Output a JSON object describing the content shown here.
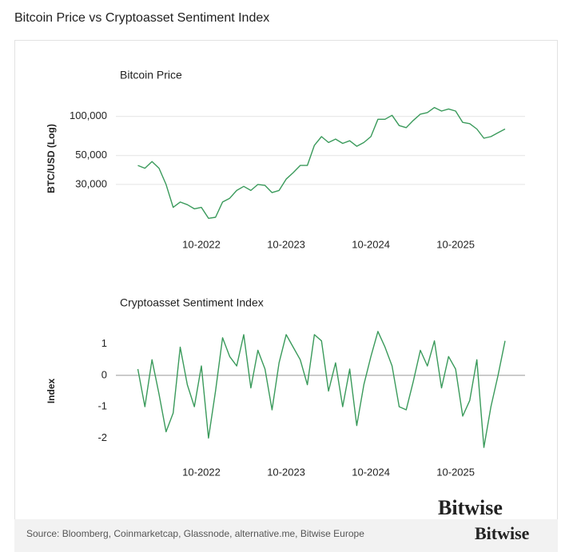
{
  "title": "Bitcoin Price vs Cryptoasset Sentiment Index",
  "chart_data": [
    {
      "type": "line",
      "title": "Bitcoin Price",
      "y_label": "BTC/USD (Log)",
      "log_scale": true,
      "grid": true,
      "color": "#3a9a5b",
      "x": [
        "01-2022",
        "02-2022",
        "03-2022",
        "04-2022",
        "05-2022",
        "06-2022",
        "07-2022",
        "08-2022",
        "09-2022",
        "10-2022",
        "11-2022",
        "12-2022",
        "01-2023",
        "02-2023",
        "03-2023",
        "04-2023",
        "05-2023",
        "06-2023",
        "07-2023",
        "08-2023",
        "09-2023",
        "10-2023",
        "11-2023",
        "12-2023",
        "01-2024",
        "02-2024",
        "03-2024",
        "04-2024",
        "05-2024",
        "06-2024",
        "07-2024",
        "08-2024",
        "09-2024",
        "10-2024",
        "11-2024",
        "12-2024",
        "01-2025",
        "02-2025",
        "03-2025",
        "04-2025",
        "05-2025",
        "06-2025",
        "07-2025",
        "08-2025",
        "09-2025",
        "10-2025",
        "11-2025",
        "12-2025",
        "01-2026",
        "02-2026",
        "03-2026",
        "04-2026",
        "05-2026"
      ],
      "values": [
        42000,
        40000,
        45000,
        40000,
        30000,
        20000,
        22000,
        21000,
        19500,
        20000,
        16500,
        16800,
        22000,
        23500,
        27000,
        29000,
        27000,
        30000,
        29500,
        26000,
        27000,
        33000,
        37000,
        42000,
        42000,
        60000,
        70000,
        63000,
        67000,
        62000,
        65000,
        59000,
        63000,
        70000,
        95000,
        95000,
        102000,
        85000,
        82000,
        93000,
        104000,
        107000,
        117000,
        110000,
        114000,
        110000,
        90000,
        88000,
        80000,
        68000,
        70000,
        75000,
        80000
      ],
      "xlim": [
        "01-2022",
        "05-2026"
      ],
      "xticks": [
        "10-2022",
        "10-2023",
        "10-2024",
        "10-2025"
      ],
      "ylim": [
        15000,
        150000
      ],
      "yticks": [
        {
          "value": 100000,
          "label": "100,000"
        },
        {
          "value": 50000,
          "label": "50,000"
        },
        {
          "value": 30000,
          "label": "30,000"
        }
      ]
    },
    {
      "type": "line",
      "title": "Cryptoasset Sentiment Index",
      "y_label": "Index",
      "log_scale": false,
      "grid": false,
      "zero_line": true,
      "color": "#3a9a5b",
      "x": [
        "01-2022",
        "02-2022",
        "03-2022",
        "04-2022",
        "05-2022",
        "06-2022",
        "07-2022",
        "08-2022",
        "09-2022",
        "10-2022",
        "11-2022",
        "12-2022",
        "01-2023",
        "02-2023",
        "03-2023",
        "04-2023",
        "05-2023",
        "06-2023",
        "07-2023",
        "08-2023",
        "09-2023",
        "10-2023",
        "11-2023",
        "12-2023",
        "01-2024",
        "02-2024",
        "03-2024",
        "04-2024",
        "05-2024",
        "06-2024",
        "07-2024",
        "08-2024",
        "09-2024",
        "10-2024",
        "11-2024",
        "12-2024",
        "01-2025",
        "02-2025",
        "03-2025",
        "04-2025",
        "05-2025",
        "06-2025",
        "07-2025",
        "08-2025",
        "09-2025",
        "10-2025",
        "11-2025",
        "12-2025",
        "01-2026",
        "02-2026",
        "03-2026",
        "04-2026",
        "05-2026"
      ],
      "values": [
        0.2,
        -1.0,
        0.5,
        -0.6,
        -1.8,
        -1.2,
        0.9,
        -0.3,
        -1.0,
        0.3,
        -2.0,
        -0.5,
        1.2,
        0.6,
        0.3,
        1.3,
        -0.4,
        0.8,
        0.2,
        -1.1,
        0.4,
        1.3,
        0.9,
        0.5,
        -0.3,
        1.3,
        1.1,
        -0.5,
        0.4,
        -1.0,
        0.2,
        -1.6,
        -0.3,
        0.6,
        1.4,
        0.9,
        0.3,
        -1.0,
        -1.1,
        -0.2,
        0.8,
        0.3,
        1.1,
        -0.4,
        0.6,
        0.2,
        -1.3,
        -0.8,
        0.5,
        -2.3,
        -1.0,
        0.0,
        1.1
      ],
      "xlim": [
        "01-2022",
        "05-2026"
      ],
      "xticks": [
        "10-2022",
        "10-2023",
        "10-2024",
        "10-2025"
      ],
      "ylim": [
        -2.5,
        1.5
      ],
      "yticks": [
        1,
        0,
        -1,
        -2
      ]
    }
  ],
  "footer": {
    "source": "Source: Bloomberg, Coinmarketcap, Glassnode, alternative.me, Bitwise Europe",
    "logo": "Bitwise"
  }
}
